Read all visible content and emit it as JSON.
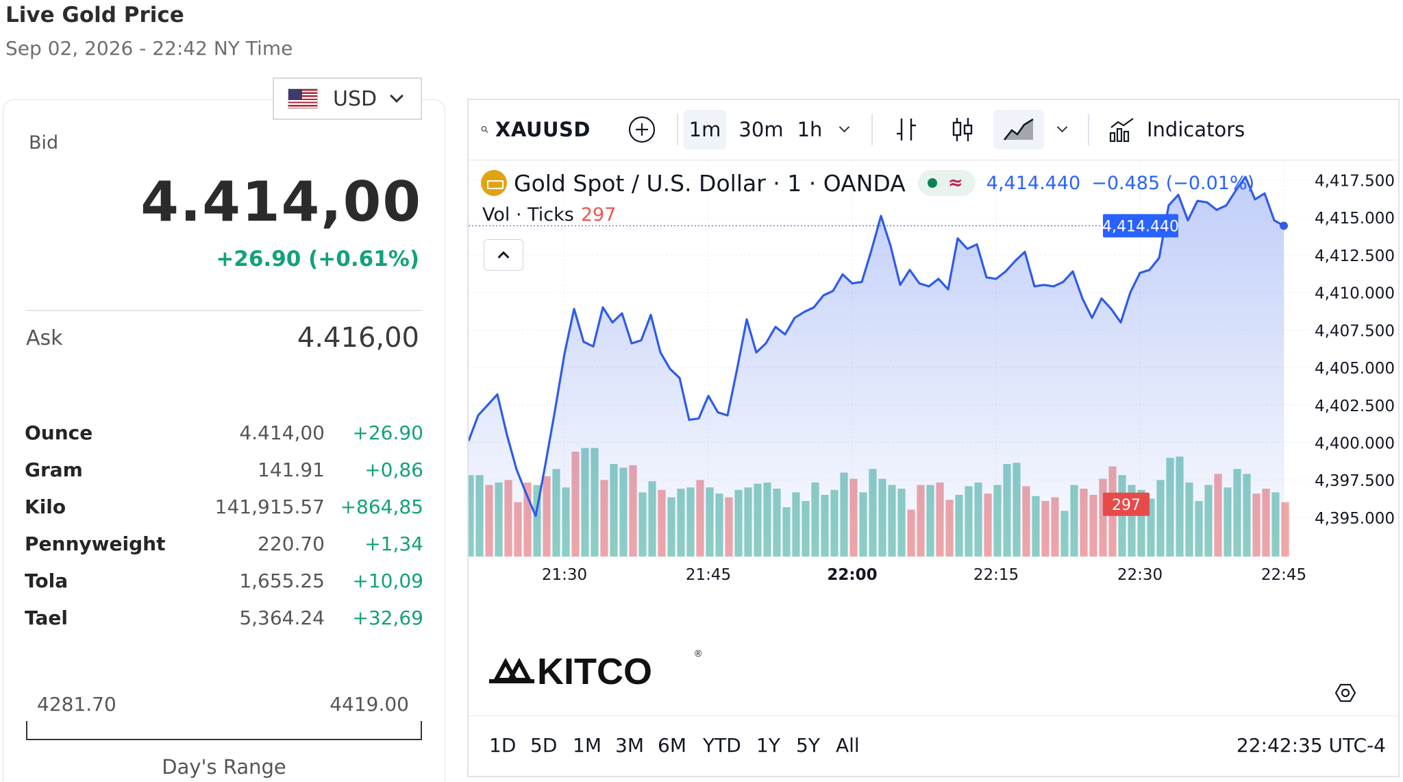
{
  "header": {
    "title": "Live Gold Price",
    "subtitle": "Sep 02, 2026 - 22:42 NY Time"
  },
  "currency": {
    "selected": "USD",
    "flag_icon": "us-flag-icon"
  },
  "quote": {
    "bid_label": "Bid",
    "bid_price": "4.414,00",
    "bid_change": "+26.90 (+0.61%)",
    "ask_label": "Ask",
    "ask_price": "4.416,00"
  },
  "units": [
    {
      "name": "Ounce",
      "price": "4.414,00",
      "change": "+26.90"
    },
    {
      "name": "Gram",
      "price": "141.91",
      "change": "+0,86"
    },
    {
      "name": "Kilo",
      "price": "141,915.57",
      "change": "+864,85"
    },
    {
      "name": "Pennyweight",
      "price": "220.70",
      "change": "+1,34"
    },
    {
      "name": "Tola",
      "price": "1,655.25",
      "change": "+10,09"
    },
    {
      "name": "Tael",
      "price": "5,364.24",
      "change": "+32,69"
    }
  ],
  "days_range": {
    "low": "4281.70",
    "high": "4419.00",
    "label": "Day's Range"
  },
  "chart_toolbar": {
    "symbol": "XAUUSD",
    "intervals": [
      "1m",
      "30m",
      "1h"
    ],
    "active_interval": "1m",
    "indicators_label": "Indicators"
  },
  "chart_legend": {
    "description": "Gold Spot / U.S. Dollar · 1 · OANDA",
    "last": "4,414.440",
    "change": "−0.485 (−0.01%)",
    "vol_label": "Vol · Ticks",
    "vol_value": "297"
  },
  "bottom_bar": {
    "ranges": [
      "1D",
      "5D",
      "1M",
      "3M",
      "6M",
      "YTD",
      "1Y",
      "5Y",
      "All"
    ],
    "clock": "22:42:35 UTC-4"
  },
  "watermark": "KITCO",
  "colors": {
    "line": "#2f5be8",
    "up_volume": "#8fd0c4",
    "down_volume": "#f2a7a7",
    "price_tag": "#2962ff",
    "volume_tag": "#e84a4a",
    "positive": "#12a17c"
  },
  "chart_data": {
    "type": "area",
    "title": "Gold Spot / U.S. Dollar · 1 · OANDA",
    "xlabel": "",
    "ylabel": "",
    "x_ticks": [
      "21:30",
      "21:45",
      "22:00",
      "22:15",
      "22:30",
      "22:45"
    ],
    "y_ticks": [
      "4,395.000",
      "4,397.500",
      "4,400.000",
      "4,402.500",
      "4,405.000",
      "4,407.500",
      "4,410.000",
      "4,412.500",
      "4,415.000",
      "4,417.500"
    ],
    "ylim": [
      4392.3,
      4418.8
    ],
    "x_start": "21:20",
    "x_end": "22:45",
    "last_price_label": "4,414.440",
    "last_volume_label": "297",
    "price": [
      4400.1,
      4401.8,
      4402.5,
      4403.2,
      4400.5,
      4398.2,
      4396.6,
      4395.1,
      4398.5,
      4402.1,
      4405.9,
      4408.9,
      4406.7,
      4406.4,
      4409.0,
      4408.0,
      4408.6,
      4406.6,
      4406.8,
      4408.5,
      4406.0,
      4404.9,
      4404.3,
      4401.5,
      4401.6,
      4403.1,
      4402.0,
      4401.8,
      4404.9,
      4408.2,
      4406.0,
      4406.6,
      4407.7,
      4407.2,
      4408.3,
      4408.7,
      4409.0,
      4409.8,
      4410.1,
      4411.2,
      4410.6,
      4410.7,
      4412.8,
      4415.1,
      4413.1,
      4410.5,
      4411.5,
      4410.6,
      4410.4,
      4410.9,
      4410.2,
      4413.6,
      4412.9,
      4413.2,
      4411.0,
      4410.9,
      4411.4,
      4412.1,
      4412.7,
      4410.4,
      4410.5,
      4410.4,
      4410.7,
      4411.4,
      4409.6,
      4408.3,
      4409.6,
      4408.9,
      4408.0,
      4410.0,
      4411.3,
      4411.5,
      4412.3,
      4415.8,
      4416.5,
      4414.8,
      4416.1,
      4416.0,
      4415.5,
      4415.8,
      4416.8,
      4417.7,
      4416.2,
      4416.6,
      4414.8,
      4414.44
    ],
    "volume": [
      0.66,
      0.66,
      0.58,
      0.6,
      0.62,
      0.44,
      0.6,
      0.58,
      0.65,
      0.71,
      0.56,
      0.85,
      0.88,
      0.88,
      0.62,
      0.75,
      0.72,
      0.74,
      0.52,
      0.61,
      0.54,
      0.48,
      0.55,
      0.56,
      0.62,
      0.56,
      0.51,
      0.48,
      0.54,
      0.56,
      0.59,
      0.6,
      0.55,
      0.4,
      0.52,
      0.45,
      0.6,
      0.5,
      0.54,
      0.68,
      0.63,
      0.52,
      0.71,
      0.63,
      0.58,
      0.55,
      0.38,
      0.58,
      0.58,
      0.6,
      0.46,
      0.5,
      0.57,
      0.6,
      0.51,
      0.58,
      0.75,
      0.76,
      0.57,
      0.49,
      0.45,
      0.48,
      0.37,
      0.58,
      0.55,
      0.5,
      0.63,
      0.73,
      0.66,
      0.58,
      0.54,
      0.47,
      0.62,
      0.8,
      0.81,
      0.6,
      0.45,
      0.58,
      0.67,
      0.56,
      0.71,
      0.67,
      0.51,
      0.55,
      0.52,
      0.44
    ],
    "volume_direction": [
      "up",
      "up",
      "down",
      "up",
      "down",
      "down",
      "down",
      "up",
      "down",
      "up",
      "up",
      "down",
      "up",
      "up",
      "down",
      "up",
      "up",
      "down",
      "up",
      "up",
      "down",
      "up",
      "up",
      "up",
      "down",
      "up",
      "up",
      "down",
      "up",
      "up",
      "up",
      "up",
      "up",
      "up",
      "up",
      "up",
      "up",
      "up",
      "up",
      "up",
      "down",
      "up",
      "up",
      "up",
      "up",
      "up",
      "down",
      "down",
      "up",
      "down",
      "down",
      "up",
      "up",
      "up",
      "down",
      "up",
      "up",
      "up",
      "down",
      "up",
      "down",
      "down",
      "up",
      "up",
      "down",
      "down",
      "down",
      "down",
      "up",
      "up",
      "up",
      "up",
      "up",
      "up",
      "up",
      "up",
      "up",
      "up",
      "down",
      "up",
      "up",
      "up",
      "down",
      "down",
      "up",
      "down"
    ]
  }
}
